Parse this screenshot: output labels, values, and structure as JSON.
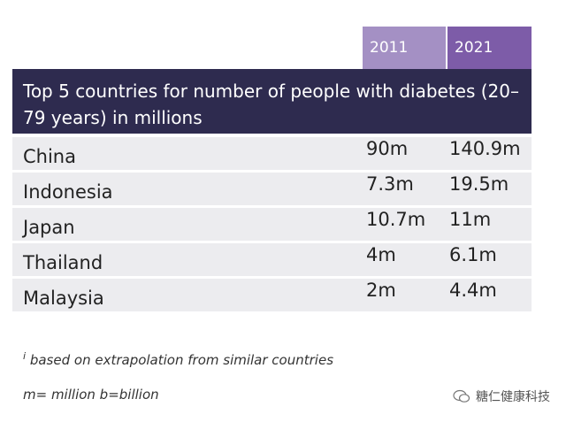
{
  "years": [
    "2011",
    "2021"
  ],
  "header": {
    "title": "Top 5 countries for number of people with diabetes (20–79 years) in millions"
  },
  "rows": [
    {
      "country": "China",
      "v2011": "90m",
      "v2021": "140.9m"
    },
    {
      "country": "Indonesia",
      "v2011": "7.3m",
      "v2021": "19.5m"
    },
    {
      "country": "Japan",
      "v2011": "10.7m",
      "v2021": "11m"
    },
    {
      "country": "Thailand",
      "v2011": "4m",
      "v2021": "6.1m"
    },
    {
      "country": "Malaysia",
      "v2011": "2m",
      "v2021": "4.4m"
    }
  ],
  "footnote": {
    "marker": "i",
    "text": "based on extrapolation from similar countries"
  },
  "legend_note": "m= million b=billion",
  "watermark": {
    "text": "糖仁健康科技",
    "icon": "wechat-icon"
  },
  "colors": {
    "header_bg": "#2e2b4f",
    "year_2011_bg": "#a490c4",
    "year_2021_bg": "#7d5ca8",
    "row_bg": "#ececef"
  }
}
